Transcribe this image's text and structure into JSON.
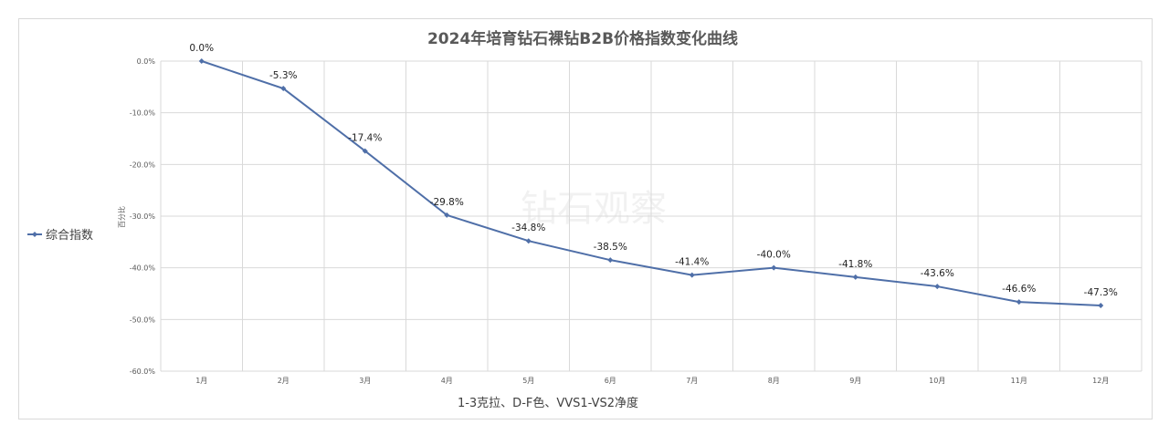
{
  "chart_data": {
    "type": "line",
    "title": "2024年培育钻石裸钻B2B价格指数变化曲线",
    "xlabel": "1-3克拉、D-F色、VVS1-VS2净度",
    "ylabel": "百分比",
    "categories": [
      "1月",
      "2月",
      "3月",
      "4月",
      "5月",
      "6月",
      "7月",
      "8月",
      "9月",
      "10月",
      "11月",
      "12月"
    ],
    "series": [
      {
        "name": "综合指数",
        "values": [
          0.0,
          -5.3,
          -17.4,
          -29.8,
          -34.8,
          -38.5,
          -41.4,
          -40.0,
          -41.8,
          -43.6,
          -46.6,
          -47.3
        ],
        "labels": [
          "0.0%",
          "-5.3%",
          "-17.4%",
          "-29.8%",
          "-34.8%",
          "-38.5%",
          "-41.4%",
          "-40.0%",
          "-41.8%",
          "-43.6%",
          "-46.6%",
          "-47.3%"
        ],
        "color": "#4f6fa8"
      }
    ],
    "yticks": [
      0,
      -10,
      -20,
      -30,
      -40,
      -50,
      -60
    ],
    "ytick_labels": [
      "0.0%",
      "-10.0%",
      "-20.0%",
      "-30.0%",
      "-40.0%",
      "-50.0%",
      "-60.0%"
    ],
    "ylim": [
      -60,
      0
    ],
    "grid": true,
    "legend_position": "left",
    "gridline_color": "#d9d9d9",
    "watermark": "钻石观察"
  }
}
